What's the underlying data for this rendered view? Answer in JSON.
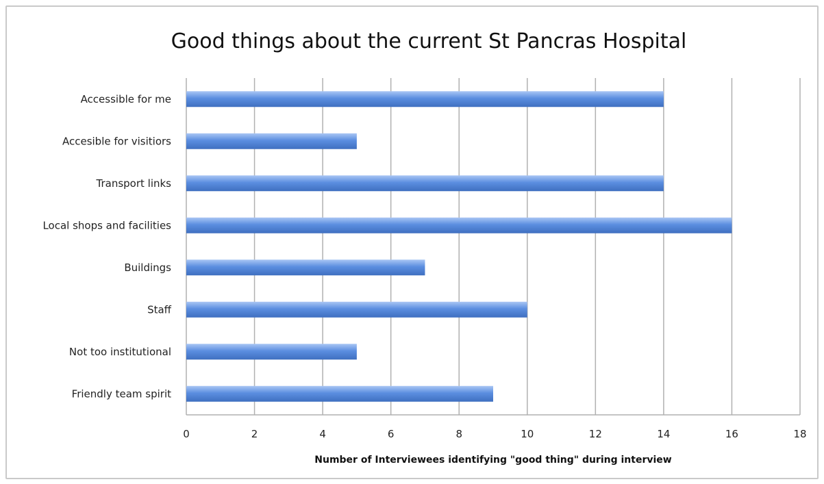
{
  "chart_data": {
    "type": "bar",
    "orientation": "horizontal",
    "title": "Good things about the current St Pancras Hospital",
    "xlabel": "Number of Interviewees identifying \"good thing\" during interview",
    "ylabel": "",
    "categories": [
      "Accessible for me",
      "Accesible for visitiors",
      "Transport links",
      "Local shops and facilities",
      "Buildings",
      "Staff",
      "Not too institutional",
      "Friendly team spirit"
    ],
    "values": [
      14,
      5,
      14,
      16,
      7,
      10,
      5,
      9
    ],
    "xlim": [
      0,
      18
    ],
    "xticks": [
      "0",
      "2",
      "4",
      "6",
      "8",
      "10",
      "12",
      "14",
      "16",
      "18"
    ],
    "grid": "vertical",
    "legend": "none",
    "colors": {
      "bar": "#5b8ee0",
      "bar_highlight": "#a9c6f4",
      "bar_shadow": "#3f6fc0",
      "grid": "#b0b0b0"
    }
  }
}
